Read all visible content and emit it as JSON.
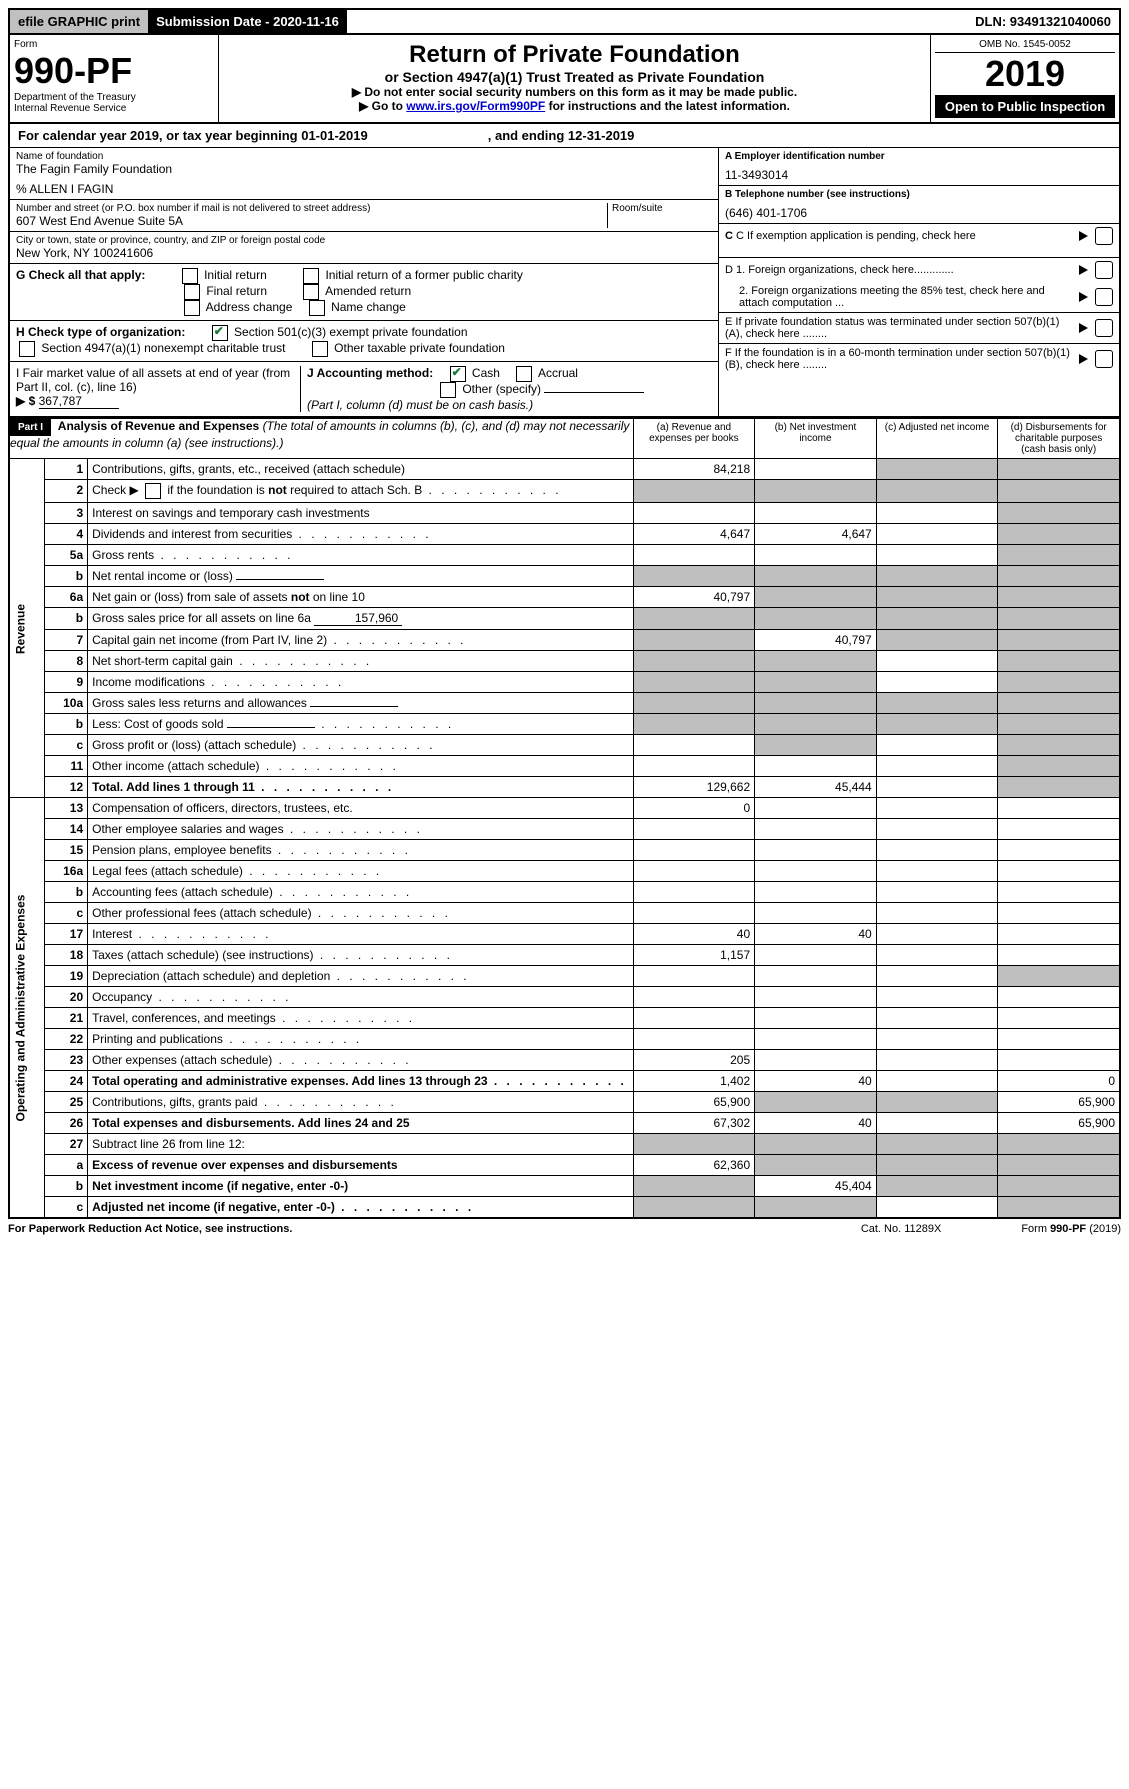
{
  "topbar": {
    "efile": "efile GRAPHIC print",
    "submission_label": "Submission Date - 2020-11-16",
    "dln": "DLN: 93491321040060"
  },
  "header": {
    "form_word": "Form",
    "form_number": "990-PF",
    "dept": "Department of the Treasury",
    "irs": "Internal Revenue Service",
    "title": "Return of Private Foundation",
    "subtitle": "or Section 4947(a)(1) Trust Treated as Private Foundation",
    "instr1": "▶ Do not enter social security numbers on this form as it may be made public.",
    "instr2_pre": "▶ Go to ",
    "instr2_link": "www.irs.gov/Form990PF",
    "instr2_post": " for instructions and the latest information.",
    "omb": "OMB No. 1545-0052",
    "year": "2019",
    "open": "Open to Public Inspection"
  },
  "calyear": {
    "text_a": "For calendar year 2019, or tax year beginning 01-01-2019",
    "text_b": ", and ending 12-31-2019"
  },
  "id": {
    "name_lbl": "Name of foundation",
    "name": "The Fagin Family Foundation",
    "care_of": "% ALLEN I FAGIN",
    "addr_lbl": "Number and street (or P.O. box number if mail is not delivered to street address)",
    "addr": "607 West End Avenue Suite 5A",
    "room_lbl": "Room/suite",
    "city_lbl": "City or town, state or province, country, and ZIP or foreign postal code",
    "city": "New York, NY  100241606",
    "a_lbl": "A Employer identification number",
    "a_val": "11-3493014",
    "b_lbl": "B Telephone number (see instructions)",
    "b_val": "(646) 401-1706",
    "c_lbl": "C If exemption application is pending, check here",
    "d1": "D 1. Foreign organizations, check here.............",
    "d2": "2. Foreign organizations meeting the 85% test, check here and attach computation ...",
    "e": "E  If private foundation status was terminated under section 507(b)(1)(A), check here ........",
    "f": "F  If the foundation is in a 60-month termination under section 507(b)(1)(B), check here ........"
  },
  "g": {
    "label": "G Check all that apply:",
    "opts": [
      "Initial return",
      "Initial return of a former public charity",
      "Final return",
      "Amended return",
      "Address change",
      "Name change"
    ]
  },
  "h": {
    "label": "H Check type of organization:",
    "opt1": "Section 501(c)(3) exempt private foundation",
    "opt2": "Section 4947(a)(1) nonexempt charitable trust",
    "opt3": "Other taxable private foundation"
  },
  "i": {
    "label": "I Fair market value of all assets at end of year (from Part II, col. (c), line 16)",
    "arrow": "▶ $",
    "val": "367,787"
  },
  "j": {
    "label": "J Accounting method:",
    "cash": "Cash",
    "accrual": "Accrual",
    "other": "Other (specify)",
    "note": "(Part I, column (d) must be on cash basis.)"
  },
  "part1": {
    "hdr": "Part I",
    "title": "Analysis of Revenue and Expenses",
    "note": "(The total of amounts in columns (b), (c), and (d) may not necessarily equal the amounts in column (a) (see instructions).)",
    "col_a": "(a)   Revenue and expenses per books",
    "col_b": "(b)  Net investment income",
    "col_c": "(c)  Adjusted net income",
    "col_d": "(d)  Disbursements for charitable purposes (cash basis only)"
  },
  "sections": {
    "revenue": "Revenue",
    "expenses": "Operating and Administrative Expenses"
  },
  "rows": [
    {
      "n": "1",
      "d": "Contributions, gifts, grants, etc., received (attach schedule)",
      "a": "84,218",
      "b": "",
      "c": "grey",
      "dd": "grey"
    },
    {
      "n": "2",
      "d": "Check ▶ ☐ if the foundation is not required to attach Sch. B",
      "dots": true,
      "a": "grey",
      "b": "grey",
      "c": "grey",
      "dd": "grey"
    },
    {
      "n": "3",
      "d": "Interest on savings and temporary cash investments",
      "a": "",
      "b": "",
      "c": "",
      "dd": "grey"
    },
    {
      "n": "4",
      "d": "Dividends and interest from securities",
      "dots": true,
      "a": "4,647",
      "b": "4,647",
      "c": "",
      "dd": "grey"
    },
    {
      "n": "5a",
      "d": "Gross rents",
      "dots": true,
      "a": "",
      "b": "",
      "c": "",
      "dd": "grey"
    },
    {
      "n": "b",
      "d": "Net rental income or (loss)",
      "input": true,
      "a": "grey",
      "b": "grey",
      "c": "grey",
      "dd": "grey"
    },
    {
      "n": "6a",
      "d": "Net gain or (loss) from sale of assets not on line 10",
      "a": "40,797",
      "b": "grey",
      "c": "grey",
      "dd": "grey"
    },
    {
      "n": "b",
      "d": "Gross sales price for all assets on line 6a",
      "input": true,
      "ival": "157,960",
      "a": "grey",
      "b": "grey",
      "c": "grey",
      "dd": "grey"
    },
    {
      "n": "7",
      "d": "Capital gain net income (from Part IV, line 2)",
      "dots": true,
      "a": "grey",
      "b": "40,797",
      "c": "grey",
      "dd": "grey"
    },
    {
      "n": "8",
      "d": "Net short-term capital gain",
      "dots": true,
      "a": "grey",
      "b": "grey",
      "c": "",
      "dd": "grey"
    },
    {
      "n": "9",
      "d": "Income modifications",
      "dots": true,
      "a": "grey",
      "b": "grey",
      "c": "",
      "dd": "grey"
    },
    {
      "n": "10a",
      "d": "Gross sales less returns and allowances",
      "input": true,
      "a": "grey",
      "b": "grey",
      "c": "grey",
      "dd": "grey"
    },
    {
      "n": "b",
      "d": "Less: Cost of goods sold",
      "dots": true,
      "input": true,
      "a": "grey",
      "b": "grey",
      "c": "grey",
      "dd": "grey"
    },
    {
      "n": "c",
      "d": "Gross profit or (loss) (attach schedule)",
      "dots": true,
      "a": "",
      "b": "grey",
      "c": "",
      "dd": "grey"
    },
    {
      "n": "11",
      "d": "Other income (attach schedule)",
      "dots": true,
      "a": "",
      "b": "",
      "c": "",
      "dd": "grey"
    },
    {
      "n": "12",
      "d": "Total. Add lines 1 through 11",
      "bold": true,
      "dots": true,
      "a": "129,662",
      "b": "45,444",
      "c": "",
      "dd": "grey"
    },
    {
      "n": "13",
      "d": "Compensation of officers, directors, trustees, etc.",
      "a": "0",
      "b": "",
      "c": "",
      "dd": ""
    },
    {
      "n": "14",
      "d": "Other employee salaries and wages",
      "dots": true,
      "a": "",
      "b": "",
      "c": "",
      "dd": ""
    },
    {
      "n": "15",
      "d": "Pension plans, employee benefits",
      "dots": true,
      "a": "",
      "b": "",
      "c": "",
      "dd": ""
    },
    {
      "n": "16a",
      "d": "Legal fees (attach schedule)",
      "dots": true,
      "a": "",
      "b": "",
      "c": "",
      "dd": ""
    },
    {
      "n": "b",
      "d": "Accounting fees (attach schedule)",
      "dots": true,
      "a": "",
      "b": "",
      "c": "",
      "dd": ""
    },
    {
      "n": "c",
      "d": "Other professional fees (attach schedule)",
      "dots": true,
      "a": "",
      "b": "",
      "c": "",
      "dd": ""
    },
    {
      "n": "17",
      "d": "Interest",
      "dots": true,
      "a": "40",
      "b": "40",
      "c": "",
      "dd": ""
    },
    {
      "n": "18",
      "d": "Taxes (attach schedule) (see instructions)",
      "dots": true,
      "a": "1,157",
      "b": "",
      "c": "",
      "dd": ""
    },
    {
      "n": "19",
      "d": "Depreciation (attach schedule) and depletion",
      "dots": true,
      "a": "",
      "b": "",
      "c": "",
      "dd": "grey"
    },
    {
      "n": "20",
      "d": "Occupancy",
      "dots": true,
      "a": "",
      "b": "",
      "c": "",
      "dd": ""
    },
    {
      "n": "21",
      "d": "Travel, conferences, and meetings",
      "dots": true,
      "a": "",
      "b": "",
      "c": "",
      "dd": ""
    },
    {
      "n": "22",
      "d": "Printing and publications",
      "dots": true,
      "a": "",
      "b": "",
      "c": "",
      "dd": ""
    },
    {
      "n": "23",
      "d": "Other expenses (attach schedule)",
      "dots": true,
      "a": "205",
      "b": "",
      "c": "",
      "dd": ""
    },
    {
      "n": "24",
      "d": "Total operating and administrative expenses. Add lines 13 through 23",
      "bold": true,
      "dots": true,
      "a": "1,402",
      "b": "40",
      "c": "",
      "dd": "0"
    },
    {
      "n": "25",
      "d": "Contributions, gifts, grants paid",
      "dots": true,
      "a": "65,900",
      "b": "grey",
      "c": "grey",
      "dd": "65,900"
    },
    {
      "n": "26",
      "d": "Total expenses and disbursements. Add lines 24 and 25",
      "bold": true,
      "a": "67,302",
      "b": "40",
      "c": "",
      "dd": "65,900"
    },
    {
      "n": "27",
      "d": "Subtract line 26 from line 12:",
      "a": "grey",
      "b": "grey",
      "c": "grey",
      "dd": "grey"
    },
    {
      "n": "a",
      "d": "Excess of revenue over expenses and disbursements",
      "bold": true,
      "a": "62,360",
      "b": "grey",
      "c": "grey",
      "dd": "grey"
    },
    {
      "n": "b",
      "d": "Net investment income (if negative, enter -0-)",
      "bold": true,
      "a": "grey",
      "b": "45,404",
      "c": "grey",
      "dd": "grey"
    },
    {
      "n": "c",
      "d": "Adjusted net income (if negative, enter -0-)",
      "bold": true,
      "dots": true,
      "a": "grey",
      "b": "grey",
      "c": "",
      "dd": "grey"
    }
  ],
  "footer": {
    "left": "For Paperwork Reduction Act Notice, see instructions.",
    "mid": "Cat. No. 11289X",
    "right": "Form 990-PF (2019)"
  }
}
